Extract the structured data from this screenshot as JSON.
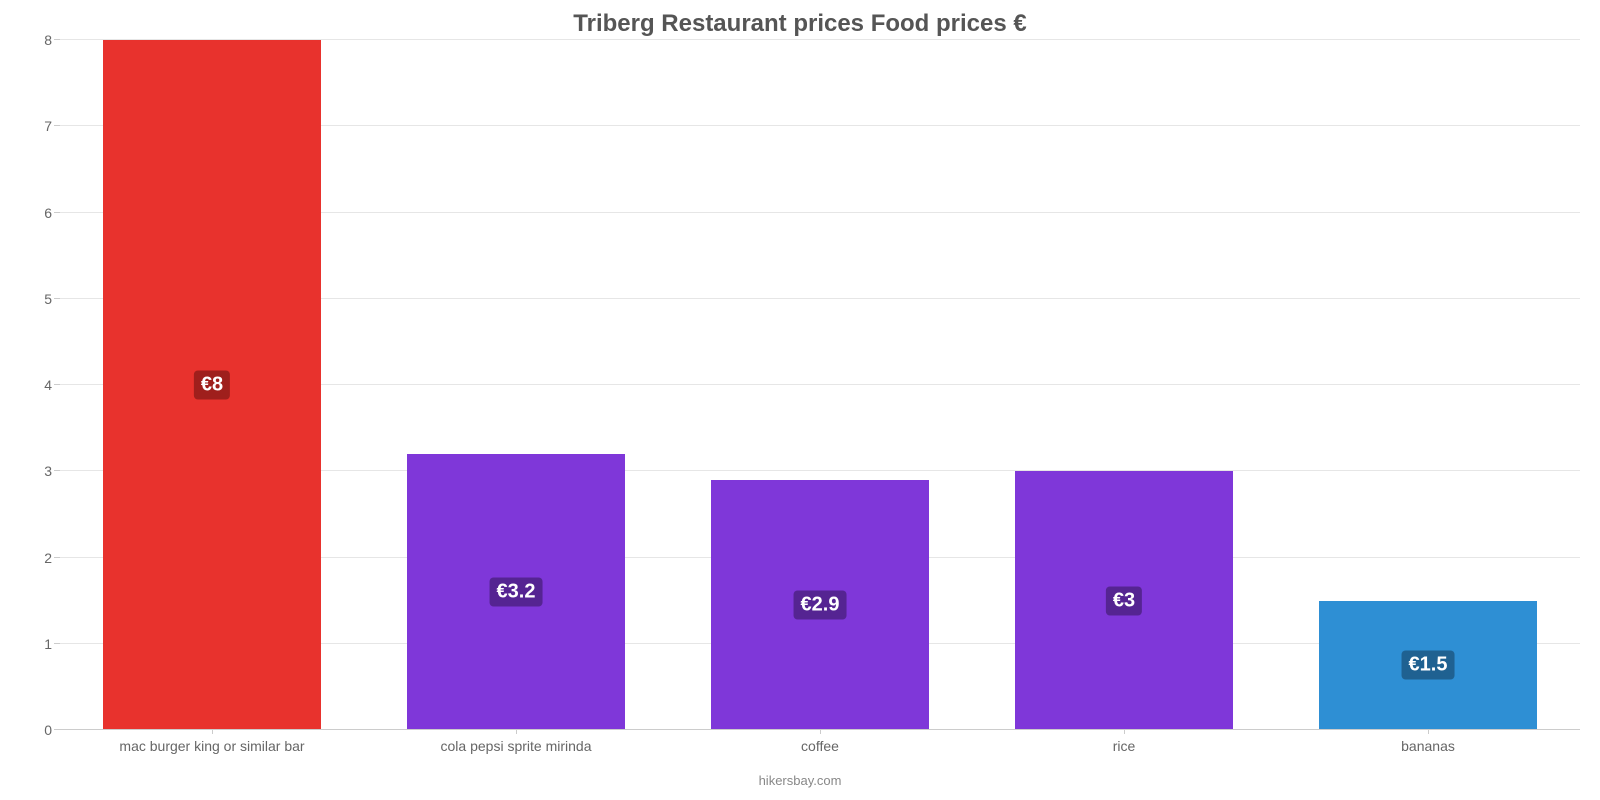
{
  "chart": {
    "type": "bar",
    "title": "Triberg Restaurant prices Food prices €",
    "title_fontsize": 24,
    "title_color": "#555555",
    "background_color": "#ffffff",
    "grid_color": "#e6e6e6",
    "axis_line_color": "#cccccc",
    "plot_border": false,
    "yaxis": {
      "min": 0,
      "max": 8,
      "tick_step": 1,
      "ticks": [
        0,
        1,
        2,
        3,
        4,
        5,
        6,
        7,
        8
      ],
      "label_color": "#666666",
      "label_fontsize": 14
    },
    "xaxis": {
      "label_color": "#666666",
      "label_fontsize": 14
    },
    "bar_width_pct": 72,
    "data_label_fontsize": 20,
    "data_label_color": "#ffffff",
    "categories": [
      {
        "label": "mac burger king or similar bar",
        "value": 8.0,
        "display": "€8",
        "color": "#e8322d",
        "label_bg": "#9f1f1c"
      },
      {
        "label": "cola pepsi sprite mirinda",
        "value": 3.2,
        "display": "€3.2",
        "color": "#7f37d9",
        "label_bg": "#552492"
      },
      {
        "label": "coffee",
        "value": 2.9,
        "display": "€2.9",
        "color": "#7f37d9",
        "label_bg": "#552492"
      },
      {
        "label": "rice",
        "value": 3.0,
        "display": "€3",
        "color": "#7f37d9",
        "label_bg": "#552492"
      },
      {
        "label": "bananas",
        "value": 1.5,
        "display": "€1.5",
        "color": "#2e8fd4",
        "label_bg": "#1f6191"
      }
    ],
    "credits": "hikersbay.com"
  }
}
